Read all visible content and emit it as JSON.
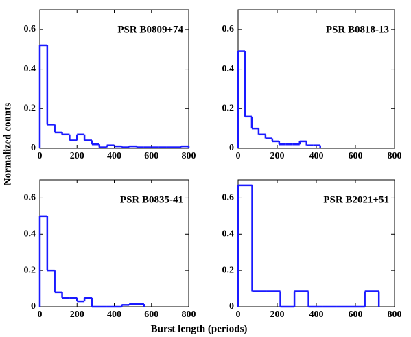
{
  "xlabel": "Burst length (periods)",
  "ylabel": "Normalized counts",
  "chart_data": [
    {
      "type": "histogram",
      "title": "PSR B0809+74",
      "color": "#1a1aff",
      "bins": [
        0,
        40,
        80,
        120,
        160,
        200,
        240,
        280,
        320,
        360,
        400,
        440,
        480,
        520,
        560,
        600,
        640,
        680,
        720,
        760,
        800
      ],
      "counts": [
        0.52,
        0.12,
        0.08,
        0.07,
        0.04,
        0.07,
        0.04,
        0.02,
        0.005,
        0.015,
        0.01,
        0.005,
        0.01,
        0.005,
        0.005,
        0.005,
        0.005,
        0.005,
        0.005,
        0.01
      ],
      "xlim": [
        0,
        800
      ],
      "ylim": [
        0,
        0.7
      ],
      "xticks": [
        0,
        200,
        400,
        600,
        800
      ],
      "yticks": [
        0,
        0.2,
        0.4,
        0.6
      ]
    },
    {
      "type": "histogram",
      "title": "PSR B0818-13",
      "color": "#1a1aff",
      "bins": [
        0,
        35,
        70,
        105,
        140,
        175,
        210,
        245,
        280,
        315,
        350,
        385,
        420
      ],
      "counts": [
        0.49,
        0.16,
        0.1,
        0.07,
        0.05,
        0.035,
        0.02,
        0.02,
        0.02,
        0.035,
        0.015,
        0.015
      ],
      "xlim": [
        0,
        800
      ],
      "ylim": [
        0,
        0.7
      ],
      "xticks": [
        0,
        200,
        400,
        600,
        800
      ],
      "yticks": [
        0,
        0.2,
        0.4,
        0.6
      ]
    },
    {
      "type": "histogram",
      "title": "PSR B0835-41",
      "color": "#1a1aff",
      "bins": [
        0,
        40,
        80,
        120,
        160,
        200,
        240,
        280,
        320,
        360,
        400,
        440,
        480,
        520,
        560
      ],
      "counts": [
        0.5,
        0.2,
        0.08,
        0.05,
        0.05,
        0.03,
        0.05,
        0,
        0,
        0,
        0,
        0.01,
        0.015,
        0.015
      ],
      "xlim": [
        0,
        800
      ],
      "ylim": [
        0,
        0.7
      ],
      "xticks": [
        0,
        200,
        400,
        600,
        800
      ],
      "yticks": [
        0,
        0.2,
        0.4,
        0.6
      ]
    },
    {
      "type": "histogram",
      "title": "PSR B2021+51",
      "color": "#1a1aff",
      "bins": [
        0,
        72,
        144,
        216,
        288,
        360,
        432,
        504,
        576,
        648,
        720
      ],
      "counts": [
        0.67,
        0.085,
        0.085,
        0,
        0.085,
        0,
        0,
        0,
        0,
        0.085
      ],
      "xlim": [
        0,
        800
      ],
      "ylim": [
        0,
        0.7
      ],
      "xticks": [
        0,
        200,
        400,
        600,
        800
      ],
      "yticks": [
        0,
        0.2,
        0.4,
        0.6
      ]
    }
  ]
}
